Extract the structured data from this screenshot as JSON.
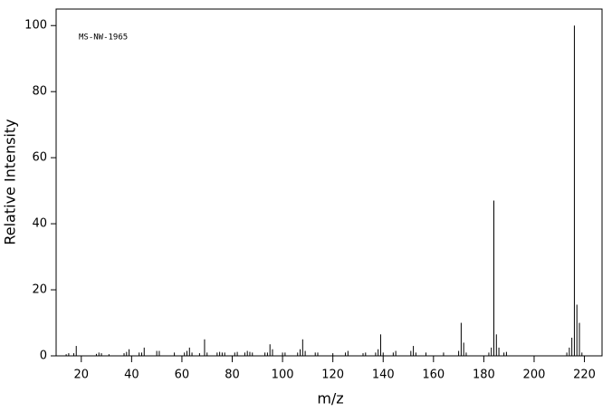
{
  "chart_data": {
    "type": "stick",
    "annotation": "MS-NW-1965",
    "x_label": "m/z",
    "y_label": "Relative Intensity",
    "color": "#000000",
    "xlim": [
      10,
      227
    ],
    "ylim": [
      0,
      105
    ],
    "xticks": [
      20,
      40,
      60,
      80,
      100,
      120,
      140,
      160,
      180,
      200,
      220
    ],
    "yticks": [
      0,
      20,
      40,
      60,
      80,
      100
    ],
    "x": [
      14,
      15,
      17,
      18,
      26,
      27,
      28,
      31,
      37,
      38,
      39,
      43,
      44,
      45,
      50,
      51,
      57,
      61,
      62,
      63,
      64,
      67,
      69,
      70,
      74,
      75,
      76,
      77,
      81,
      82,
      85,
      86,
      87,
      88,
      93,
      94,
      95,
      96,
      100,
      101,
      106,
      107,
      108,
      109,
      113,
      114,
      120,
      125,
      126,
      132,
      133,
      137,
      138,
      139,
      140,
      144,
      145,
      151,
      152,
      153,
      157,
      164,
      170,
      171,
      172,
      173,
      182,
      183,
      184,
      185,
      186,
      188,
      189,
      213,
      214,
      215,
      216,
      217,
      218,
      219
    ],
    "values": [
      0.5,
      0.8,
      0.8,
      3,
      0.6,
      1,
      0.8,
      0.5,
      0.8,
      1.2,
      2,
      1,
      1,
      2.5,
      1.5,
      1.5,
      1,
      1,
      1.5,
      2.5,
      1,
      0.8,
      5,
      1,
      1,
      1.2,
      1,
      1,
      1,
      1.2,
      1,
      1.5,
      1.2,
      1,
      1,
      1,
      3.5,
      2,
      1,
      1,
      1,
      2,
      5,
      1.5,
      1,
      1,
      0.8,
      1,
      1.5,
      0.8,
      1,
      1,
      2,
      6.5,
      1,
      1,
      1.5,
      1.5,
      3,
      1,
      1,
      1,
      1.5,
      10,
      4,
      1,
      1,
      2.5,
      47,
      6.5,
      2.5,
      1,
      1.2,
      1,
      2.5,
      5.5,
      100,
      15.5,
      10,
      1
    ]
  }
}
